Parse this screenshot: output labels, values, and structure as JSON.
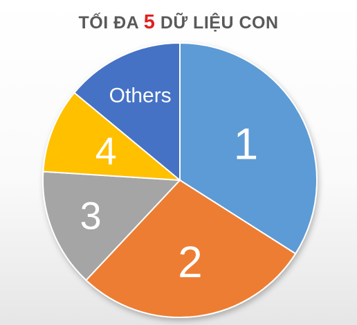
{
  "title": {
    "prefix": "TỐI ĐA ",
    "highlight": "5",
    "suffix": " DỮ LIỆU CON"
  },
  "colors": {
    "title": "#595959",
    "highlight": "#e02020"
  },
  "chart_data": {
    "type": "pie",
    "title": "TỐI ĐA 5 DỮ LIỆU CON",
    "slices": [
      {
        "label": "1",
        "value": 34,
        "color": "#5b9bd5"
      },
      {
        "label": "2",
        "value": 28,
        "color": "#ed7d31"
      },
      {
        "label": "3",
        "value": 14,
        "color": "#a5a5a5"
      },
      {
        "label": "4",
        "value": 10,
        "color": "#ffc000"
      },
      {
        "label": "Others",
        "value": 14,
        "color": "#4472c4"
      }
    ],
    "start": "12 o'clock",
    "direction": "clockwise",
    "legend": "none"
  }
}
